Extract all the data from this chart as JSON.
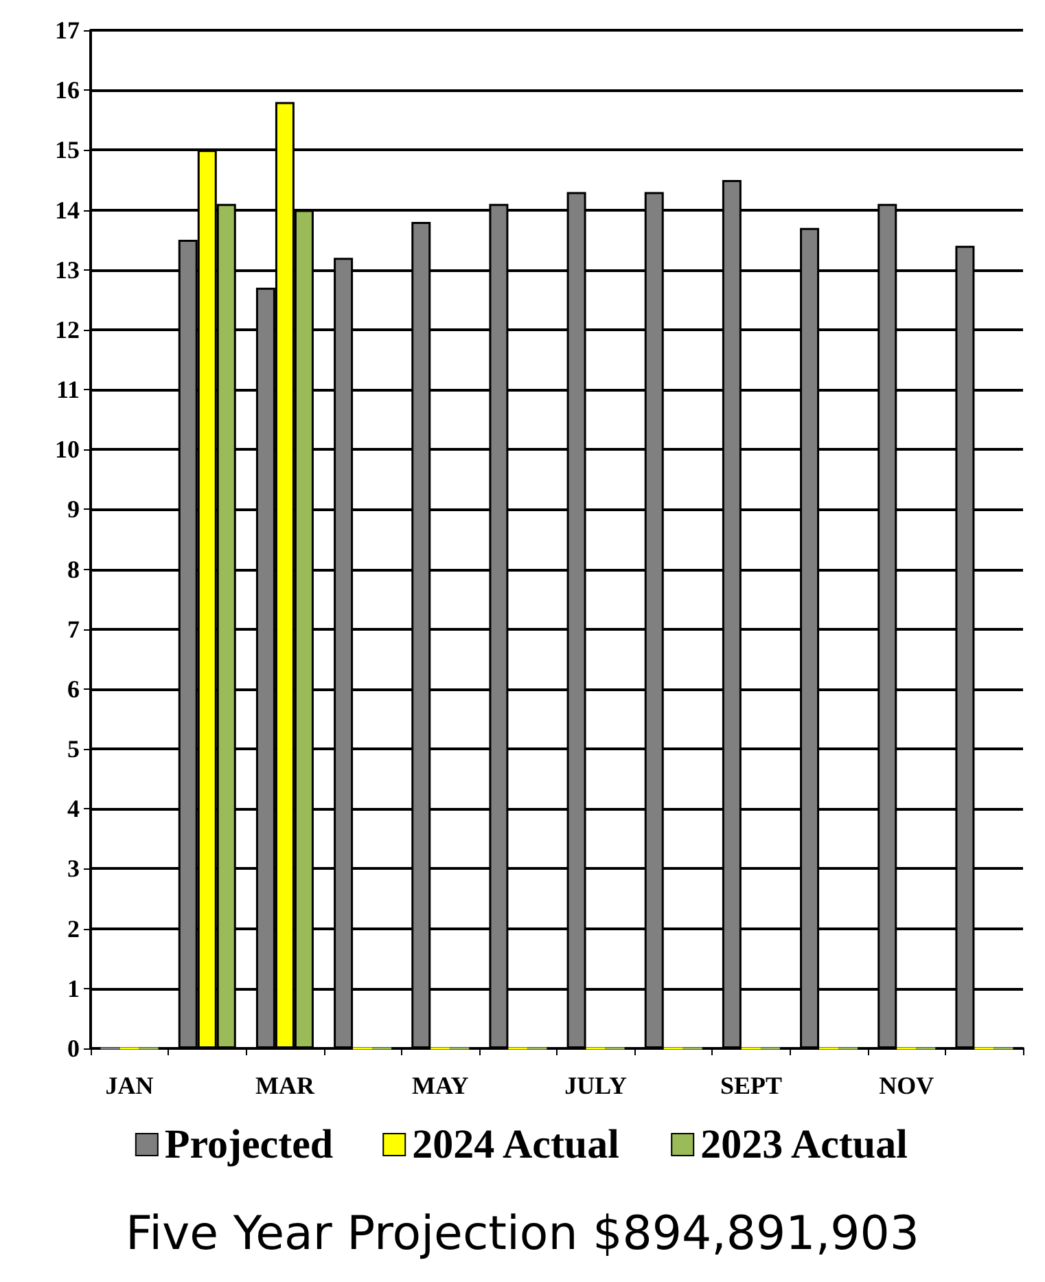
{
  "chart_data": {
    "type": "bar",
    "categories": [
      "JAN",
      null,
      "MAR",
      null,
      "MAY",
      null,
      "JULY",
      null,
      "SEPT",
      null,
      "NOV",
      null
    ],
    "series": [
      {
        "name": "Projected",
        "color": "#808080",
        "values": [
          0,
          13.5,
          12.7,
          13.2,
          13.8,
          14.1,
          14.3,
          14.3,
          14.5,
          13.7,
          14.1,
          13.4
        ]
      },
      {
        "name": "2024 Actual",
        "color": "#ffff00",
        "values": [
          0,
          15.0,
          15.8,
          0,
          0,
          0,
          0,
          0,
          0,
          0,
          0,
          0
        ]
      },
      {
        "name": "2023 Actual",
        "color": "#9bbb59",
        "values": [
          0,
          14.1,
          14.0,
          0,
          0,
          0,
          0,
          0,
          0,
          0,
          0,
          0
        ]
      }
    ],
    "ylim": [
      0,
      17
    ],
    "yticks": [
      0,
      1,
      2,
      3,
      4,
      5,
      6,
      7,
      8,
      9,
      10,
      11,
      12,
      13,
      14,
      15,
      16,
      17
    ],
    "grid": "y",
    "legend": "bottom",
    "annotations": [
      "Five Year Projection $894,891,903"
    ]
  }
}
